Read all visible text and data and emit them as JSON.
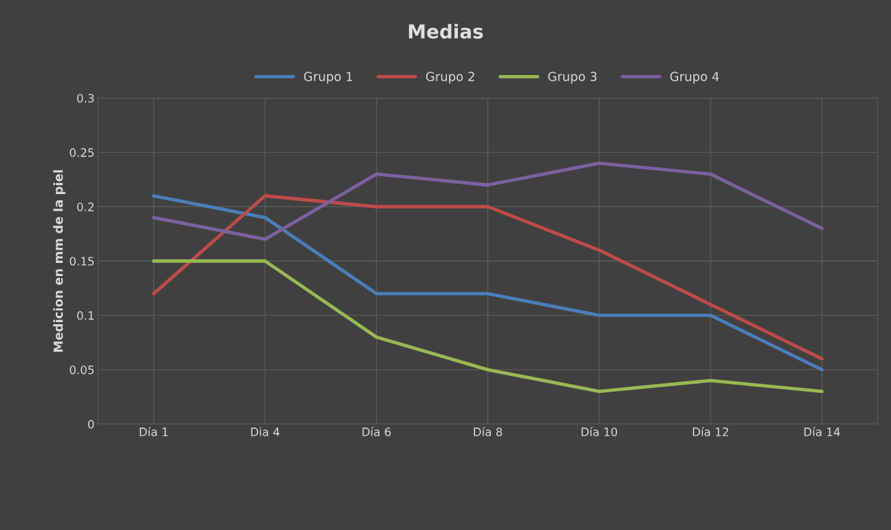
{
  "chart_data": {
    "type": "line",
    "title": "Medias",
    "ylabel": "Medicion en mm de la piel",
    "categories": [
      "Día 1",
      "Dia 4",
      "Día 6",
      "Día 8",
      "Día 10",
      "Día 12",
      "Día 14"
    ],
    "series": [
      {
        "name": "Grupo 1",
        "color": "#4a7ebb",
        "values": [
          0.21,
          0.19,
          0.12,
          0.12,
          0.1,
          0.1,
          0.05
        ]
      },
      {
        "name": "Grupo 2",
        "color": "#be4b48",
        "values": [
          0.12,
          0.21,
          0.2,
          0.2,
          0.16,
          0.11,
          0.06
        ]
      },
      {
        "name": "Grupo 3",
        "color": "#98b954",
        "values": [
          0.15,
          0.15,
          0.08,
          0.05,
          0.03,
          0.04,
          0.03
        ]
      },
      {
        "name": "Grupo 4",
        "color": "#7d60a0",
        "values": [
          0.19,
          0.17,
          0.23,
          0.22,
          0.24,
          0.23,
          0.18
        ]
      }
    ],
    "ylim": [
      0,
      0.3
    ],
    "yticks": [
      0,
      0.05,
      0.1,
      0.15,
      0.2,
      0.25,
      0.3
    ],
    "grid": true,
    "legend": "top",
    "marker": "none",
    "line_style": "solid"
  }
}
